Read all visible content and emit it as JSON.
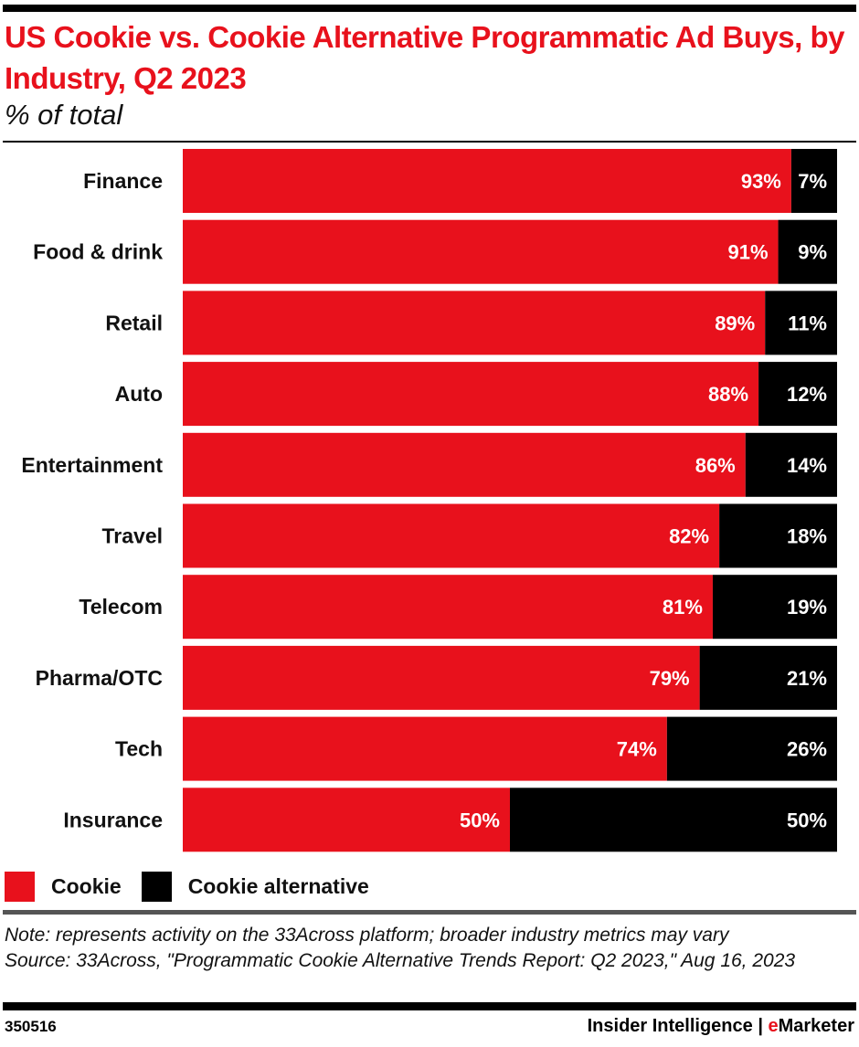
{
  "chart_data": {
    "type": "bar",
    "orientation": "horizontal",
    "stacked": true,
    "title": "US Cookie vs. Cookie Alternative Programmatic Ad Buys, by Industry, Q2 2023",
    "subtitle": "% of total",
    "categories": [
      "Finance",
      "Food & drink",
      "Retail",
      "Auto",
      "Entertainment",
      "Travel",
      "Telecom",
      "Pharma/OTC",
      "Tech",
      "Insurance"
    ],
    "series": [
      {
        "name": "Cookie",
        "color": "#e8111c",
        "values": [
          93,
          91,
          89,
          88,
          86,
          82,
          81,
          79,
          74,
          50
        ]
      },
      {
        "name": "Cookie alternative",
        "color": "#000000",
        "values": [
          7,
          9,
          11,
          12,
          14,
          18,
          19,
          21,
          26,
          50
        ]
      }
    ],
    "xlim": [
      0,
      100
    ],
    "value_suffix": "%",
    "grid": false,
    "legend": "bottom-left"
  },
  "note": "Note: represents activity on the 33Across platform; broader industry metrics may vary",
  "source": "Source: 33Across, \"Programmatic Cookie Alternative Trends Report: Q2 2023,\" Aug 16, 2023",
  "footer": {
    "id": "350516",
    "brand_prefix": "Insider Intelligence | ",
    "brand_e": "e",
    "brand_rest": "Marketer"
  }
}
